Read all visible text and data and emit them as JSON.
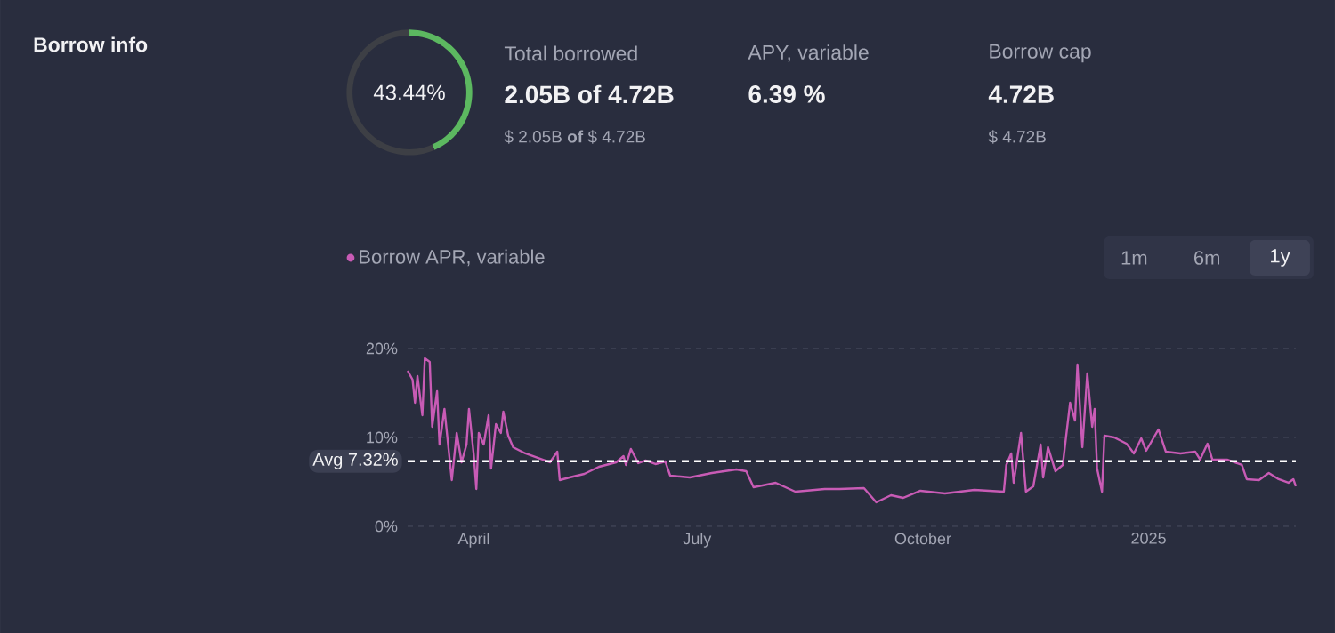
{
  "chart_data": [
    {
      "type": "donut",
      "categories": [
        null,
        null
      ],
      "values": [
        43.44,
        56.56
      ],
      "colors": [
        "#5cb860",
        "#3d3f45"
      ],
      "annotations": [
        "43.44%"
      ]
    },
    {
      "type": "other",
      "title": "Borrow info",
      "annotations": [
        "Total borrowed",
        "2.05B of 4.72B",
        "$ 2.05B **of** $ 4.72B",
        "APY, variable",
        "6.39 %",
        "Borrow cap",
        "4.72B",
        "$ 4.72B"
      ]
    },
    {
      "type": "line",
      "x": [
        "2024-03-05",
        "2024-03-07",
        "2024-03-08",
        "2024-03-09",
        "2024-03-11",
        "2024-03-12",
        "2024-03-14",
        "2024-03-15",
        "2024-03-17",
        "2024-03-18",
        "2024-03-20",
        "2024-03-23",
        "2024-03-25",
        "2024-03-27",
        "2024-03-29",
        "2024-03-30",
        "2024-04-01",
        "2024-04-02",
        "2024-04-03",
        "2024-04-05",
        "2024-04-07",
        "2024-04-08",
        "2024-04-10",
        "2024-04-12",
        "2024-04-13",
        "2024-04-15",
        "2024-04-17",
        "2024-04-22",
        "2024-04-27",
        "2024-05-02",
        "2024-05-05",
        "2024-05-06",
        "2024-05-10",
        "2024-05-16",
        "2024-05-22",
        "2024-05-29",
        "2024-06-01",
        "2024-06-02",
        "2024-06-04",
        "2024-06-07",
        "2024-06-10",
        "2024-06-14",
        "2024-06-18",
        "2024-06-20",
        "2024-06-28",
        "2024-07-07",
        "2024-07-17",
        "2024-07-21",
        "2024-07-24",
        "2024-08-02",
        "2024-08-10",
        "2024-08-22",
        "2024-08-28",
        "2024-09-07",
        "2024-09-12",
        "2024-09-18",
        "2024-09-23",
        "2024-09-30",
        "2024-10-10",
        "2024-10-22",
        "2024-11-03",
        "2024-11-04",
        "2024-11-06",
        "2024-11-07",
        "2024-11-10",
        "2024-11-12",
        "2024-11-15",
        "2024-11-18",
        "2024-11-19",
        "2024-11-21",
        "2024-11-24",
        "2024-11-27",
        "2024-11-30",
        "2024-12-02",
        "2024-12-03",
        "2024-12-05",
        "2024-12-07",
        "2024-12-09",
        "2024-12-10",
        "2024-12-11",
        "2024-12-13",
        "2024-12-14",
        "2024-12-18",
        "2024-12-23",
        "2024-12-26",
        "2024-12-29",
        "2024-12-31",
        "2025-01-05",
        "2025-01-08",
        "2025-01-14",
        "2025-01-20",
        "2025-01-22",
        "2025-01-25",
        "2025-01-27",
        "2025-02-02",
        "2025-02-08",
        "2025-02-10",
        "2025-02-15",
        "2025-02-19",
        "2025-02-23",
        "2025-02-27",
        "2025-03-01",
        "2025-03-02"
      ],
      "series": [
        {
          "name": "Borrow APR, variable",
          "color": "#c85bb5",
          "values": [
            17.5,
            16.5,
            13.9,
            16.9,
            12.5,
            18.9,
            18.5,
            11.2,
            15.2,
            9.2,
            13.2,
            5.2,
            10.5,
            7.2,
            9.2,
            13.2,
            7.9,
            4.2,
            10.5,
            9.2,
            12.5,
            6.5,
            11.5,
            10.5,
            12.9,
            10.2,
            8.9,
            8.2,
            7.7,
            7.2,
            8.4,
            5.2,
            5.5,
            5.9,
            6.7,
            7.2,
            7.9,
            6.9,
            8.7,
            7.1,
            7.4,
            7.0,
            7.3,
            5.7,
            5.5,
            6.0,
            6.4,
            6.2,
            4.4,
            4.9,
            3.9,
            4.2,
            4.2,
            4.3,
            2.7,
            3.5,
            3.2,
            4.0,
            3.7,
            4.1,
            3.9,
            6.9,
            8.2,
            4.9,
            10.5,
            3.9,
            4.5,
            9.2,
            5.5,
            8.9,
            6.2,
            6.9,
            13.9,
            11.9,
            18.2,
            8.9,
            17.2,
            11.2,
            13.2,
            6.5,
            3.9,
            10.2,
            10.0,
            9.3,
            8.2,
            9.9,
            8.5,
            10.9,
            8.4,
            8.2,
            8.4,
            7.5,
            9.3,
            7.5,
            7.5,
            6.9,
            5.3,
            5.2,
            6.0,
            5.3,
            4.9,
            5.3,
            4.5
          ]
        }
      ],
      "xlim": [
        "2024-03-05",
        "2025-03-02"
      ],
      "xticks": [
        {
          "value": "2024-04-01",
          "label": "April"
        },
        {
          "value": "2024-07-01",
          "label": "July"
        },
        {
          "value": "2024-10-01",
          "label": "October"
        },
        {
          "value": "2025-01-01",
          "label": "2025"
        }
      ],
      "ylim": [
        0,
        20
      ],
      "yticks": [
        {
          "value": 0,
          "label": "0%"
        },
        {
          "value": 10,
          "label": "10%"
        },
        {
          "value": 20,
          "label": "20%"
        }
      ],
      "grid": "y",
      "legend": "top left",
      "line_style": "solid",
      "ref_lines": [
        {
          "axis": "y",
          "value": 7.32,
          "label": "Avg 7.32%",
          "color": "#ffffff",
          "line_style": "dashed"
        }
      ],
      "annotations": [
        "1m",
        "6m",
        "1y"
      ]
    }
  ]
}
